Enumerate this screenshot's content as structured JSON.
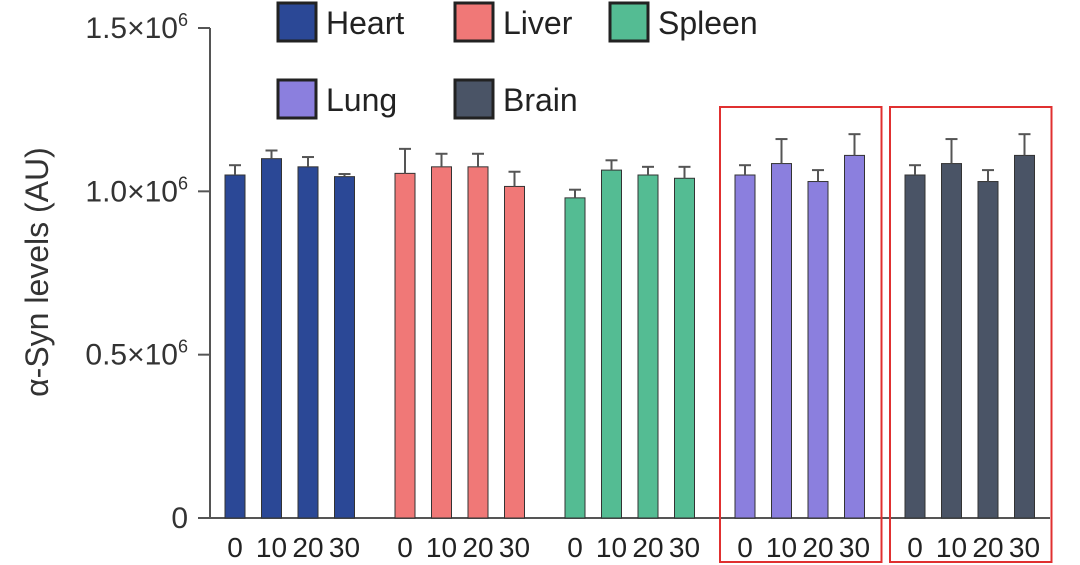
{
  "chart_data": {
    "type": "bar",
    "title": "",
    "xlabel": "",
    "ylabel": "α-Syn levels (AU)",
    "ylim": [
      0,
      1500000
    ],
    "yticks": [
      {
        "value": 0,
        "label": "0",
        "sup": ""
      },
      {
        "value": 500000,
        "label": "0.5×10",
        "sup": "6"
      },
      {
        "value": 1000000,
        "label": "1.0×10",
        "sup": "6"
      },
      {
        "value": 1500000,
        "label": "1.5×10",
        "sup": "6"
      }
    ],
    "x_tick_labels": [
      "0",
      "10",
      "20",
      "30"
    ],
    "legend": {
      "position": "top"
    },
    "highlighted_groups": [
      "Lung",
      "Brain"
    ],
    "highlight_color": "#e03030",
    "groups": [
      {
        "name": "Heart",
        "color": "#2b4896",
        "values": [
          1050000,
          1100000,
          1075000,
          1045000
        ],
        "errors": [
          30000,
          25000,
          30000,
          8000
        ]
      },
      {
        "name": "Liver",
        "color": "#f07877",
        "values": [
          1055000,
          1075000,
          1075000,
          1015000
        ],
        "errors": [
          75000,
          40000,
          40000,
          45000
        ]
      },
      {
        "name": "Spleen",
        "color": "#54bc93",
        "values": [
          980000,
          1065000,
          1050000,
          1040000
        ],
        "errors": [
          25000,
          30000,
          25000,
          35000
        ]
      },
      {
        "name": "Lung",
        "color": "#8b7fde",
        "values": [
          1050000,
          1085000,
          1030000,
          1110000
        ],
        "errors": [
          30000,
          75000,
          35000,
          65000
        ]
      },
      {
        "name": "Brain",
        "color": "#4a5466",
        "values": [
          1050000,
          1085000,
          1030000,
          1110000
        ],
        "errors": [
          30000,
          75000,
          35000,
          65000
        ]
      }
    ]
  }
}
